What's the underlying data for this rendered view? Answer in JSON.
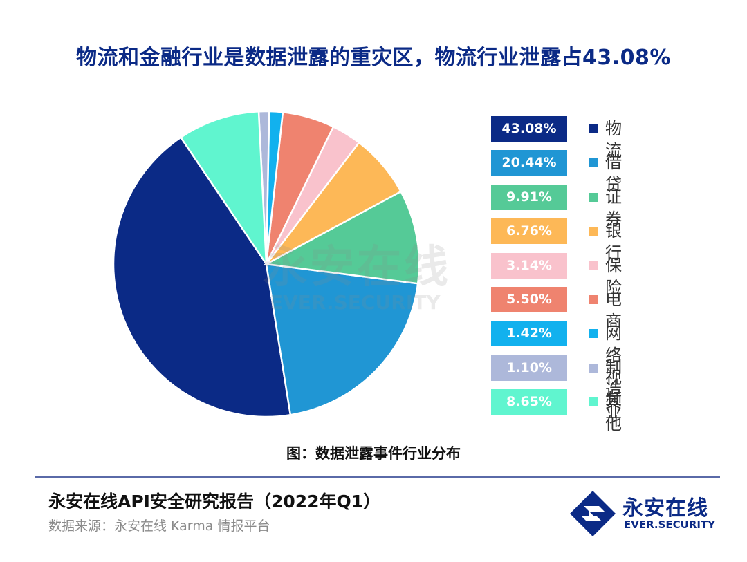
{
  "title": "物流和金融行业是数据泄露的重灾区，物流行业泄露占43.08%",
  "chart_data": {
    "type": "pie",
    "categories": [
      "物流",
      "借贷",
      "证券",
      "银行",
      "保险",
      "电商",
      "网络视频",
      "制造业",
      "其他"
    ],
    "values": [
      43.08,
      20.44,
      9.91,
      6.76,
      3.14,
      5.5,
      1.42,
      1.1,
      8.65
    ],
    "value_labels": [
      "43.08%",
      "20.44%",
      "9.91%",
      "6.76%",
      "3.14%",
      "5.50%",
      "1.42%",
      "1.10%",
      "8.65%"
    ],
    "colors": [
      "#0b2a86",
      "#2096d4",
      "#55ca97",
      "#fdb857",
      "#f9c2cc",
      "#ef836f",
      "#12b1ee",
      "#adb8da",
      "#60f5cf"
    ],
    "legend_position": "right",
    "caption": "图：数据泄露事件行业分布"
  },
  "watermark": {
    "cn": "永安在线",
    "en": "EVER.SECURITY"
  },
  "footer": {
    "report_title": "永安在线API安全研究报告（2022年Q1）",
    "source": "数据来源：永安在线 Karma 情报平台"
  },
  "logo": {
    "cn": "永安在线",
    "en": "EVER.SECURITY",
    "color": "#0b2a86"
  }
}
